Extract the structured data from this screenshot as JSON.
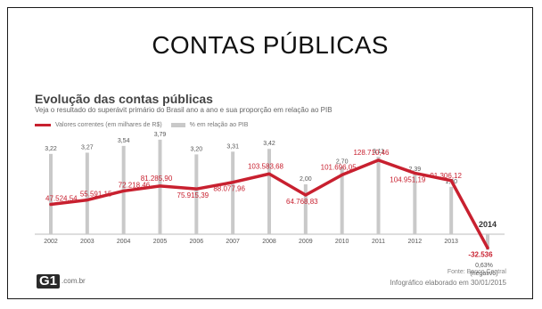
{
  "slide": {
    "title": "CONTAS PÚBLICAS"
  },
  "infographic": {
    "title": "Evolução das contas públicas",
    "subtitle": "Veja o resultado do superávit primário do Brasil ano a ano e sua proporção em relação ao PIB",
    "legend": {
      "line_label": "Valores correntes (em milhares de R$)",
      "bar_label": "% em relação ao PIB"
    },
    "source": "Fonte: Banco Central",
    "credit": "Infográfico elaborado em 30/01/2015",
    "logo_text": "G1",
    "logo_domain": ".com.br"
  },
  "chart_data": {
    "type": "line",
    "categories": [
      "2002",
      "2003",
      "2004",
      "2005",
      "2006",
      "2007",
      "2008",
      "2009",
      "2010",
      "2011",
      "2012",
      "2013",
      "2014"
    ],
    "series": [
      {
        "name": "Valores correntes (em milhares de R$)",
        "type": "line",
        "color": "#c8202f",
        "values": [
          47524.54,
          55591.15,
          72218.46,
          81285.9,
          75915.39,
          88077.96,
          103583.68,
          64768.83,
          101696.05,
          128710.46,
          104951.19,
          91306.12,
          -32536
        ],
        "labels": [
          "47.524,54",
          "55.591,15",
          "72.218,46",
          "81.285,90",
          "75.915,39",
          "88.077,96",
          "103.583,68",
          "64.768,83",
          "101.696,05",
          "128.710,46",
          "104.951,19",
          "91.306,12",
          "-32.536"
        ]
      },
      {
        "name": "% em relação ao PIB",
        "type": "bar",
        "color": "#c9c9c9",
        "values": [
          3.22,
          3.27,
          3.54,
          3.79,
          3.2,
          3.31,
          3.42,
          2.0,
          2.7,
          3.11,
          2.39,
          1.9,
          -0.63
        ],
        "labels": [
          "3,22",
          "3,27",
          "3,54",
          "3,79",
          "3,20",
          "3,31",
          "3,42",
          "2,00",
          "2,70",
          "3,11",
          "2,39",
          "1,90",
          "0,63%"
        ]
      }
    ],
    "highlight": {
      "category": "2014",
      "note": "(negativo)"
    },
    "grid": false
  }
}
